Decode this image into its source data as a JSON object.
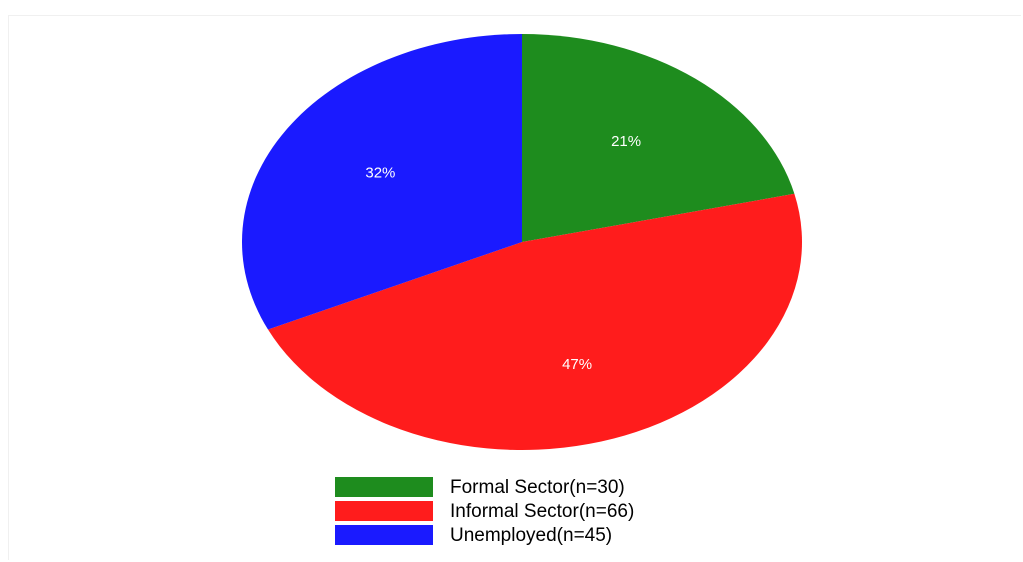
{
  "chart_data": {
    "type": "pie",
    "title": "",
    "slices": [
      {
        "label": "Formal Sector(n=30)",
        "percent_label": "21%",
        "value": 30,
        "color": "#1e8c1e"
      },
      {
        "label": "Informal Sector(n=66)",
        "percent_label": "47%",
        "value": 66,
        "color": "#ff1c1c"
      },
      {
        "label": "Unemployed(n=45)",
        "percent_label": "32%",
        "value": 45,
        "color": "#1a1aff"
      }
    ],
    "start_angle": "12 o'clock",
    "direction": "clockwise",
    "legend_position": "bottom-center"
  }
}
